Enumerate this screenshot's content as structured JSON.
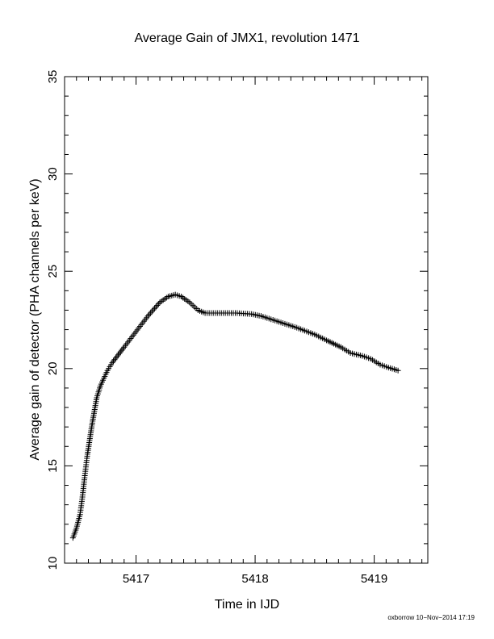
{
  "footer": "oxborrow 10−Nov−2014 17:19",
  "chart_data": {
    "type": "scatter",
    "marker": "plus",
    "color": "#000000",
    "title": "Average Gain of JMX1, revolution 1471",
    "xlabel": "Time in IJD",
    "ylabel": "Average gain of detector (PHA channels per keV)",
    "xlim": [
      5416.4,
      5419.45
    ],
    "ylim": [
      10,
      35
    ],
    "xticks": [
      5417,
      5418,
      5419
    ],
    "yticks": [
      10,
      15,
      20,
      25,
      30,
      35
    ],
    "grid": false,
    "curve": [
      [
        5416.47,
        11.3
      ],
      [
        5416.5,
        11.8
      ],
      [
        5416.53,
        12.5
      ],
      [
        5416.55,
        13.4
      ],
      [
        5416.57,
        14.5
      ],
      [
        5416.59,
        15.5
      ],
      [
        5416.61,
        16.3
      ],
      [
        5416.63,
        17.1
      ],
      [
        5416.65,
        17.8
      ],
      [
        5416.67,
        18.5
      ],
      [
        5416.7,
        19.1
      ],
      [
        5416.73,
        19.5
      ],
      [
        5416.76,
        19.9
      ],
      [
        5416.8,
        20.3
      ],
      [
        5416.85,
        20.7
      ],
      [
        5416.9,
        21.1
      ],
      [
        5417.0,
        21.9
      ],
      [
        5417.1,
        22.7
      ],
      [
        5417.2,
        23.4
      ],
      [
        5417.27,
        23.7
      ],
      [
        5417.33,
        23.8
      ],
      [
        5417.38,
        23.7
      ],
      [
        5417.45,
        23.4
      ],
      [
        5417.52,
        23.0
      ],
      [
        5417.58,
        22.85
      ],
      [
        5417.7,
        22.85
      ],
      [
        5417.85,
        22.85
      ],
      [
        5417.97,
        22.8
      ],
      [
        5418.05,
        22.7
      ],
      [
        5418.2,
        22.4
      ],
      [
        5418.35,
        22.1
      ],
      [
        5418.5,
        21.75
      ],
      [
        5418.6,
        21.45
      ],
      [
        5418.72,
        21.1
      ],
      [
        5418.8,
        20.8
      ],
      [
        5418.9,
        20.65
      ],
      [
        5418.97,
        20.5
      ],
      [
        5419.05,
        20.2
      ],
      [
        5419.12,
        20.05
      ],
      [
        5419.2,
        19.9
      ]
    ]
  }
}
